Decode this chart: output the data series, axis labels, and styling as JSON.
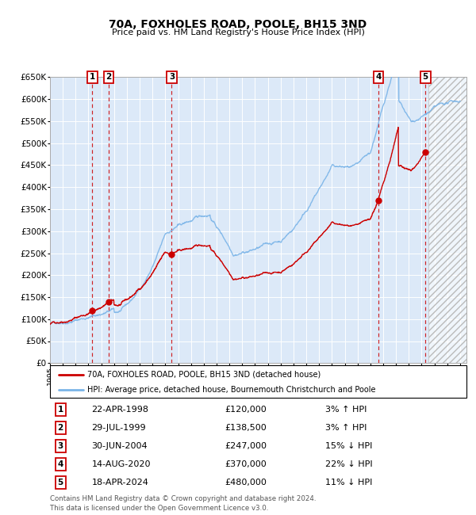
{
  "title": "70A, FOXHOLES ROAD, POOLE, BH15 3ND",
  "subtitle": "Price paid vs. HM Land Registry's House Price Index (HPI)",
  "ylim": [
    0,
    650000
  ],
  "yticks": [
    0,
    50000,
    100000,
    150000,
    200000,
    250000,
    300000,
    350000,
    400000,
    450000,
    500000,
    550000,
    600000,
    650000
  ],
  "xlim_start": 1995.0,
  "xlim_end": 2027.5,
  "bg_color": "#dce9f8",
  "hpi_color": "#7ab4e8",
  "price_color": "#cc0000",
  "dashed_line_color": "#cc0000",
  "label_address": "70A, FOXHOLES ROAD, POOLE, BH15 3ND (detached house)",
  "label_hpi": "HPI: Average price, detached house, Bournemouth Christchurch and Poole",
  "transactions": [
    {
      "num": 1,
      "date": "22-APR-1998",
      "year": 1998.31,
      "price": 120000,
      "pct": "3%",
      "dir": "↑"
    },
    {
      "num": 2,
      "date": "29-JUL-1999",
      "year": 1999.58,
      "price": 138500,
      "pct": "3%",
      "dir": "↑"
    },
    {
      "num": 3,
      "date": "30-JUN-2004",
      "year": 2004.5,
      "price": 247000,
      "pct": "15%",
      "dir": "↓"
    },
    {
      "num": 4,
      "date": "14-AUG-2020",
      "year": 2020.62,
      "price": 370000,
      "pct": "22%",
      "dir": "↓"
    },
    {
      "num": 5,
      "date": "18-APR-2024",
      "year": 2024.3,
      "price": 480000,
      "pct": "11%",
      "dir": "↓"
    }
  ],
  "footer": "Contains HM Land Registry data © Crown copyright and database right 2024.\nThis data is licensed under the Open Government Licence v3.0.",
  "hatch_start": 2024.5
}
